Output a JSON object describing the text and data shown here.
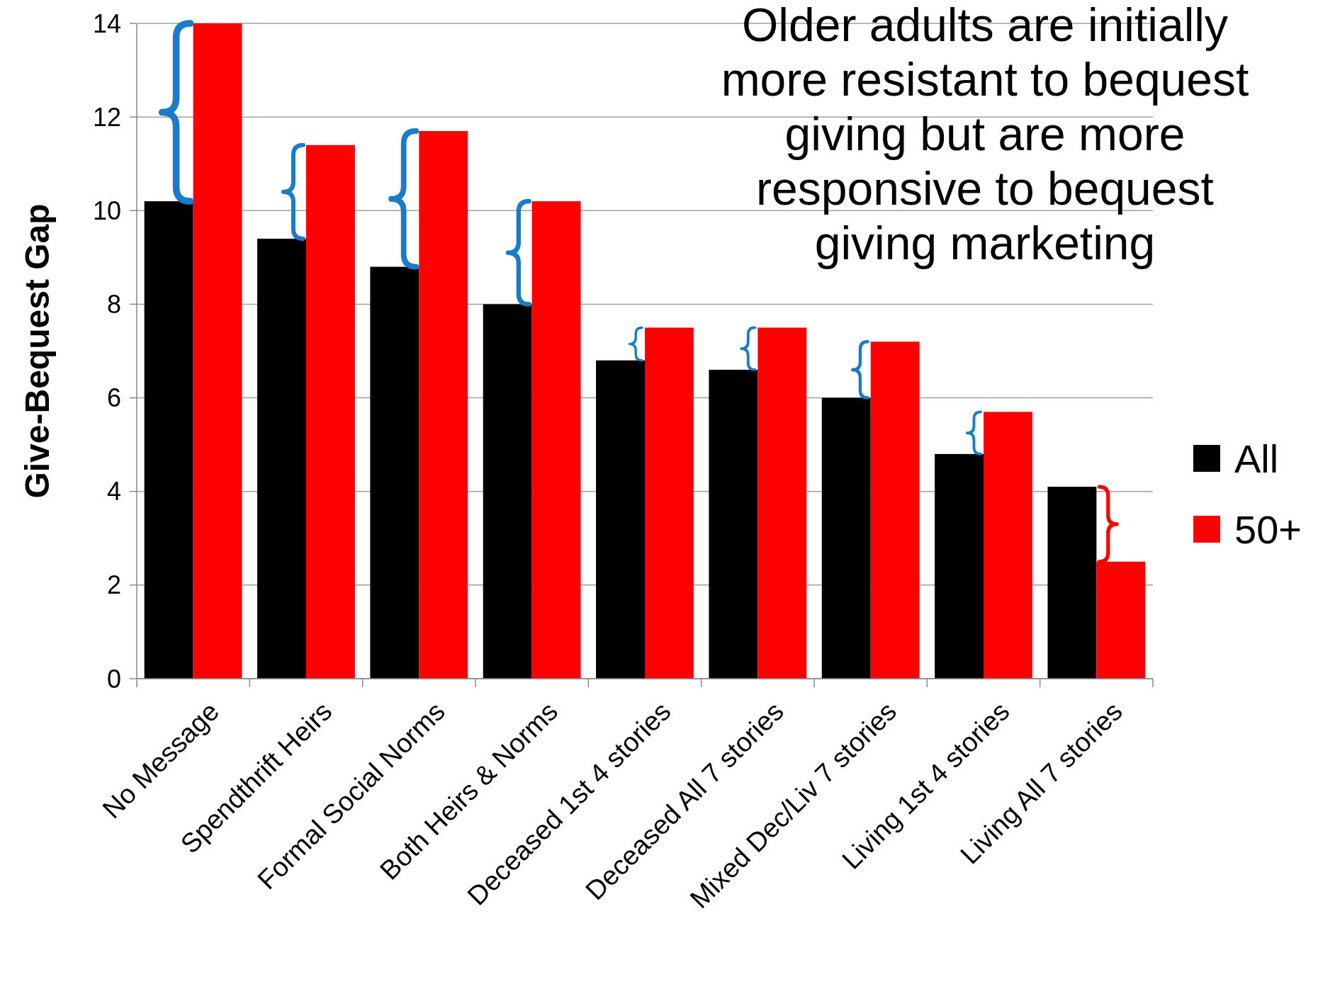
{
  "chart_data": {
    "type": "bar",
    "ylabel": "Give-Bequest Gap",
    "categories": [
      "No Message",
      "Spendthrift Heirs",
      "Formal Social Norms",
      "Both Heirs & Norms",
      "Deceased 1st 4 stories",
      "Deceased All 7 stories",
      "Mixed Dec/Liv 7 stories",
      "Living 1st 4 stories",
      "Living All 7 stories"
    ],
    "series": [
      {
        "name": "All",
        "color": "#000000",
        "values": [
          10.2,
          9.4,
          8.8,
          8.0,
          6.8,
          6.6,
          6.0,
          4.8,
          4.1
        ]
      },
      {
        "name": "50+",
        "color": "#ff0000",
        "values": [
          14.0,
          11.4,
          11.7,
          10.2,
          7.5,
          7.5,
          7.2,
          5.7,
          2.5
        ]
      }
    ],
    "ylim": [
      0,
      14
    ],
    "yticks": [
      0,
      2,
      4,
      6,
      8,
      10,
      12,
      14
    ],
    "grid": "y",
    "legend": "right",
    "annotations": [
      "Older adults are initially more resistant to bequest giving but are more responsive to bequest giving marketing"
    ]
  }
}
